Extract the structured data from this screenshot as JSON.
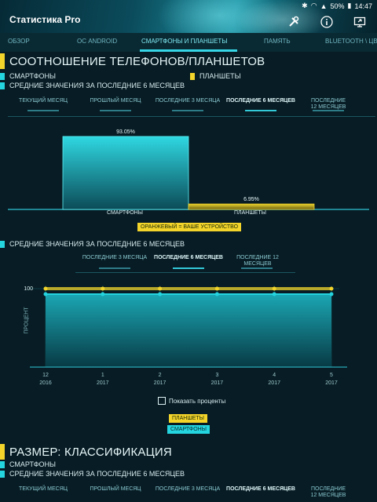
{
  "header": {
    "title": "Статистика Pro",
    "status": {
      "battery": "50%",
      "time": "14:47"
    },
    "icons": [
      "tools-icon",
      "info-icon",
      "share-screen-icon"
    ]
  },
  "tabs": [
    {
      "label": "ОБЗОР",
      "active": false
    },
    {
      "label": "ОС ANDROID",
      "active": false
    },
    {
      "label": "СМАРТФОНЫ И ПЛАНШЕТЫ",
      "active": true
    },
    {
      "label": "ПАМЯТЬ",
      "active": false
    },
    {
      "label": "BLUETOOTH \\ ЦВ",
      "active": false
    }
  ],
  "section1": {
    "title": "СООТНОШЕНИЕ ТЕЛЕФОНОВ/ПЛАНШЕТОВ",
    "legend_smartphones": "СМАРТФОНЫ",
    "legend_tablets": "ПЛАНШЕТЫ",
    "subtitle": "СРЕДНИЕ ЗНАЧЕНИЯ ЗА ПОСЛЕДНИЕ 6 МЕСЯЦЕВ",
    "period_tabs": [
      {
        "label": "ТЕКУЩИЙ МЕСЯЦ",
        "active": false
      },
      {
        "label": "ПРОШЛЫЙ МЕСЯЦ",
        "active": false
      },
      {
        "label": "ПОСЛЕДНИЕ 3 МЕСЯЦА",
        "active": false
      },
      {
        "label": "ПОСЛЕДНИЕ 6 МЕСЯЦЕВ",
        "active": true
      },
      {
        "label": "ПОСЛЕДНИЕ 12 МЕСЯЦЕВ",
        "active": false
      }
    ],
    "note": "ОРАНЖЕВЫЙ = ВАШЕ УСТРОЙСТВО"
  },
  "section2": {
    "title": "СРЕДНИЕ ЗНАЧЕНИЯ ЗА ПОСЛЕДНИЕ 6 МЕСЯЦЕВ",
    "period_tabs": [
      {
        "label": "ПОСЛЕДНИЕ 3 МЕСЯЦА",
        "active": false
      },
      {
        "label": "ПОСЛЕДНИЕ 6 МЕСЯЦЕВ",
        "active": true
      },
      {
        "label": "ПОСЛЕДНИЕ 12 МЕСЯЦЕВ",
        "active": false
      }
    ],
    "checkbox_label": "Показать проценты",
    "legend_tablets": "ПЛАНШЕТЫ",
    "legend_smartphones": "СМАРТФОНЫ"
  },
  "section3": {
    "title": "РАЗМЕР: КЛАССИФИКАЦИЯ",
    "legend_smartphones": "СМАРТФОНЫ",
    "subtitle": "СРЕДНИЕ ЗНАЧЕНИЯ ЗА ПОСЛЕДНИЕ 6 МЕСЯЦЕВ",
    "period_tabs": [
      {
        "label": "ТЕКУЩИЙ МЕСЯЦ",
        "active": false
      },
      {
        "label": "ПРОШЛЫЙ МЕСЯЦ",
        "active": false
      },
      {
        "label": "ПОСЛЕДНИЕ 3 МЕСЯЦА",
        "active": false
      },
      {
        "label": "ПОСЛЕДНИЕ 6 МЕСЯЦЕВ",
        "active": true
      },
      {
        "label": "ПОСЛЕДНИЕ 12 МЕСЯЦЕВ",
        "active": false
      }
    ]
  },
  "colors": {
    "cyan": "#24d4df",
    "yellow": "#f3d42a",
    "background": "#071c24"
  },
  "chart_data": [
    {
      "type": "bar",
      "categories": [
        "СМАРТФОНЫ",
        "ПЛАНШЕТЫ"
      ],
      "values": [
        93.05,
        6.95
      ],
      "value_labels": [
        "93.05%",
        "6.95%"
      ],
      "ylim": [
        0,
        100
      ],
      "grid": false
    },
    {
      "type": "area",
      "x": [
        "12",
        "1",
        "2",
        "3",
        "4",
        "5"
      ],
      "x_sublabels": [
        "2016",
        "2017",
        "2017",
        "2017",
        "2017",
        "2017"
      ],
      "series": [
        {
          "name": "ПЛАНШЕТЫ",
          "values": [
            100,
            100,
            100,
            100,
            100,
            100
          ],
          "color": "#f3d42a"
        },
        {
          "name": "СМАРТФОНЫ",
          "values": [
            93,
            93,
            93,
            93,
            93,
            93
          ],
          "color": "#24d4df"
        }
      ],
      "yticks": [
        "100"
      ],
      "ylabel": "ПРОЦЕНТ",
      "ylim": [
        0,
        100
      ],
      "grid": true
    }
  ]
}
